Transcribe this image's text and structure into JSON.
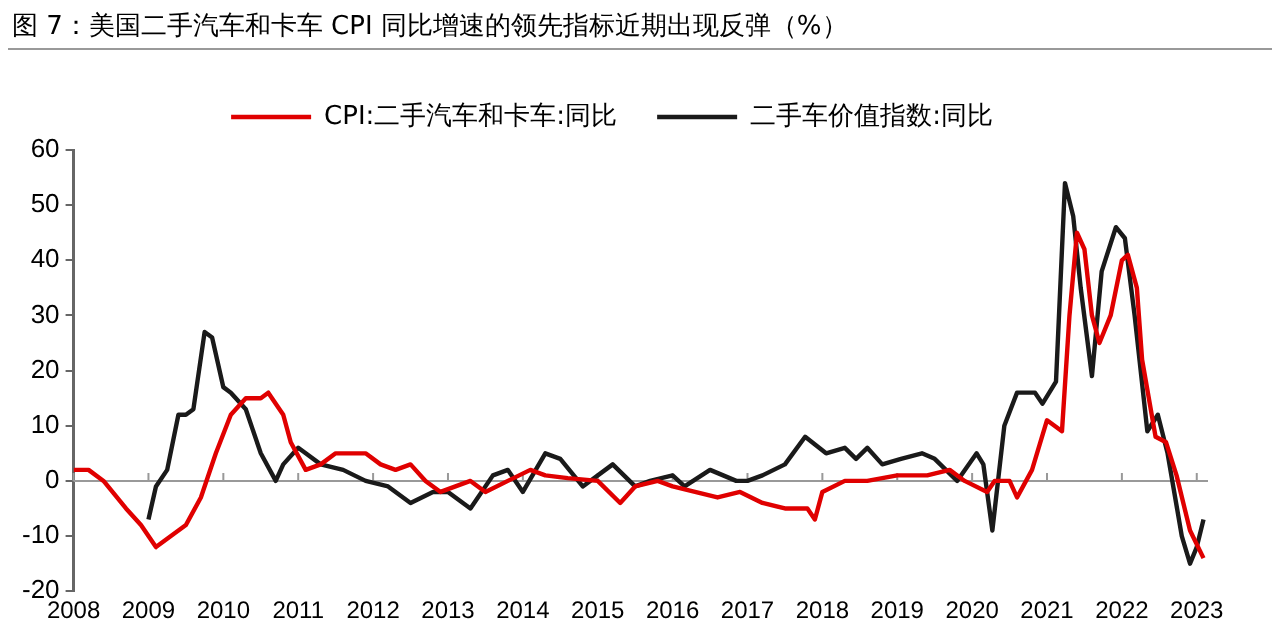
{
  "chart_data": {
    "type": "line",
    "title": "图 7：美国二手汽车和卡车 CPI 同比增速的领先指标近期出现反弹（%）",
    "xlim": [
      2008,
      2023.15
    ],
    "xticks": [
      2008,
      2009,
      2010,
      2011,
      2012,
      2013,
      2014,
      2015,
      2016,
      2017,
      2018,
      2019,
      2020,
      2021,
      2022,
      2023
    ],
    "ylim": [
      -20,
      60
    ],
    "yticks": [
      -20,
      -10,
      0,
      10,
      20,
      30,
      40,
      50,
      60
    ],
    "grid": false,
    "legend": "top",
    "marker": "none",
    "line_style": "solid",
    "ref_lines": [
      {
        "axis": "y",
        "value": 0,
        "label": null,
        "color": "#999999"
      }
    ],
    "series": [
      {
        "name": "CPI:二手汽车和卡车:同比",
        "color": "#e00000",
        "x": [
          2008.0,
          2008.2,
          2008.4,
          2008.7,
          2008.9,
          2009.1,
          2009.3,
          2009.5,
          2009.7,
          2009.9,
          2010.1,
          2010.3,
          2010.5,
          2010.6,
          2010.8,
          2010.9,
          2011.1,
          2011.3,
          2011.5,
          2011.7,
          2011.9,
          2012.1,
          2012.3,
          2012.5,
          2012.7,
          2012.9,
          2013.1,
          2013.3,
          2013.5,
          2013.8,
          2014.1,
          2014.3,
          2014.6,
          2015.0,
          2015.3,
          2015.5,
          2015.8,
          2016.0,
          2016.3,
          2016.6,
          2016.9,
          2017.2,
          2017.5,
          2017.8,
          2017.9,
          2018.0,
          2018.3,
          2018.6,
          2019.0,
          2019.4,
          2019.7,
          2019.9,
          2020.2,
          2020.3,
          2020.5,
          2020.6,
          2020.8,
          2021.0,
          2021.2,
          2021.3,
          2021.4,
          2021.5,
          2021.6,
          2021.7,
          2021.85,
          2022.0,
          2022.08,
          2022.2,
          2022.27,
          2022.45,
          2022.59,
          2022.73,
          2022.91,
          2023.09
        ],
        "values": [
          2,
          2,
          0,
          -5,
          -8,
          -12,
          -10,
          -8,
          -3,
          5,
          12,
          15,
          15,
          16,
          12,
          7,
          2,
          3,
          5,
          5,
          5,
          3,
          2,
          3,
          0,
          -2,
          -1,
          0,
          -2,
          0,
          2,
          1,
          0.5,
          0,
          -4,
          -1,
          0,
          -1,
          -2,
          -3,
          -2,
          -4,
          -5,
          -5,
          -7,
          -2,
          0,
          0,
          1,
          1,
          2,
          0,
          -2,
          0,
          0,
          -3,
          2,
          11,
          9,
          30,
          45,
          42,
          30,
          25,
          30,
          40,
          41,
          35,
          22,
          8,
          7,
          1,
          -9,
          -14
        ]
      },
      {
        "name": "二手车价值指数:同比",
        "color": "#1a1a1a",
        "x": [
          2009.0,
          2009.1,
          2009.25,
          2009.4,
          2009.5,
          2009.6,
          2009.75,
          2009.85,
          2010.0,
          2010.1,
          2010.3,
          2010.5,
          2010.7,
          2010.8,
          2011.0,
          2011.1,
          2011.3,
          2011.6,
          2011.9,
          2012.2,
          2012.5,
          2012.8,
          2013.0,
          2013.3,
          2013.6,
          2013.8,
          2014.0,
          2014.3,
          2014.5,
          2014.8,
          2015.2,
          2015.5,
          2015.7,
          2016.0,
          2016.16,
          2016.5,
          2016.85,
          2017.0,
          2017.2,
          2017.5,
          2017.77,
          2018.05,
          2018.3,
          2018.45,
          2018.6,
          2018.8,
          2019.05,
          2019.33,
          2019.5,
          2019.8,
          2020.06,
          2020.15,
          2020.27,
          2020.43,
          2020.6,
          2020.84,
          2020.94,
          2021.12,
          2021.24,
          2021.35,
          2021.45,
          2021.6,
          2021.73,
          2021.92,
          2022.04,
          2022.17,
          2022.34,
          2022.48,
          2022.61,
          2022.8,
          2022.91,
          2023.0,
          2023.09
        ],
        "values": [
          -7,
          -1,
          2,
          12,
          12,
          13,
          27,
          26,
          17,
          16,
          13,
          5,
          0,
          3,
          6,
          5,
          3,
          2,
          0,
          -1,
          -4,
          -2,
          -2,
          -5,
          1,
          2,
          -2,
          5,
          4,
          -1,
          3,
          -1,
          0,
          1,
          -1,
          2,
          0,
          0,
          1,
          3,
          8,
          5,
          6,
          4,
          6,
          3,
          4,
          5,
          4,
          0,
          5,
          3,
          -9,
          10,
          16,
          16,
          14,
          18,
          54,
          48,
          35,
          19,
          38,
          46,
          44,
          30,
          9,
          12,
          5,
          -10,
          -15,
          -12,
          -7
        ]
      }
    ]
  }
}
